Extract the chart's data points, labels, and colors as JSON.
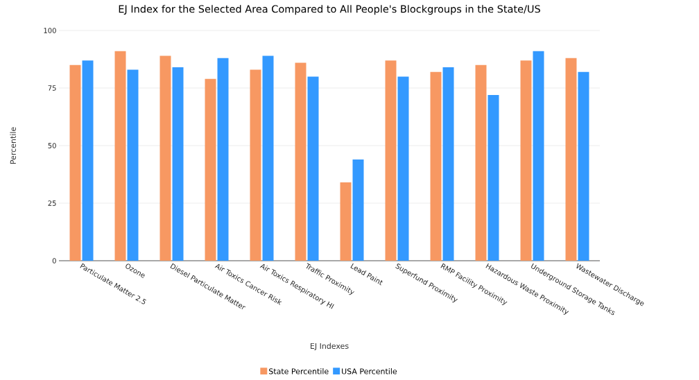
{
  "chart_data": {
    "type": "bar",
    "title": "EJ Index for the Selected Area Compared to All People's Blockgroups in the State/US",
    "xlabel": "EJ Indexes",
    "ylabel": "Percentile",
    "categories": [
      "Particulate Matter 2.5",
      "Ozone",
      "Diesel Particulate Matter",
      "Air Toxics Cancer Risk",
      "Air Toxics Respiratory HI",
      "Traffic Proximity",
      "Lead Paint",
      "Superfund Proximity",
      "RMP Facility Proximity",
      "Hazardous Waste Proximity",
      "Underground Storage Tanks",
      "Wastewater Discharge"
    ],
    "series": [
      {
        "name": "State Percentile",
        "color": "#f79862",
        "values": [
          85,
          91,
          89,
          79,
          83,
          86,
          34,
          87,
          82,
          85,
          87,
          88
        ]
      },
      {
        "name": "USA Percentile",
        "color": "#3399ff",
        "values": [
          87,
          83,
          84,
          88,
          89,
          80,
          44,
          80,
          84,
          72,
          91,
          82
        ]
      }
    ],
    "ylim": [
      0,
      100
    ],
    "yticks": [
      0,
      25,
      50,
      75,
      100
    ],
    "grid": "y",
    "legend": "bottom"
  }
}
